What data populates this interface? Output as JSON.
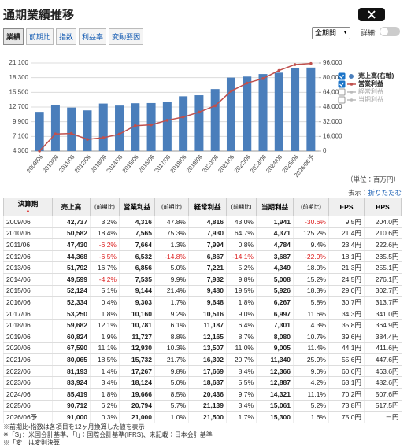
{
  "header": {
    "title": "通期業績推移"
  },
  "tabs": [
    "業績",
    "前期比",
    "指数",
    "利益率",
    "変動要因"
  ],
  "period_select": "全期間",
  "detail_label": "詳細:",
  "chart_data": {
    "type": "combo",
    "categories": [
      "2009/06",
      "2010/06",
      "2011/06",
      "2012/06",
      "2013/06",
      "2014/06",
      "2015/06",
      "2016/06",
      "2017/06",
      "2018/06",
      "2019/06",
      "2020/06",
      "2021/06",
      "2022/06",
      "2023/06",
      "2024/06",
      "2025/06",
      "2026/06予"
    ],
    "series": [
      {
        "name": "売上高(右軸)",
        "type": "bar",
        "axis": "y2",
        "color": "#4a7ebb",
        "visible": true,
        "values": [
          42737,
          50582,
          47430,
          44368,
          51792,
          49599,
          52124,
          52334,
          53250,
          59682,
          60824,
          67590,
          80065,
          81193,
          83924,
          85419,
          90712,
          91000
        ]
      },
      {
        "name": "営業利益",
        "type": "line",
        "color": "#c0504d",
        "visible": true,
        "values": [
          4316,
          7565,
          7664,
          6532,
          6856,
          7535,
          9144,
          9303,
          10160,
          10781,
          11727,
          12930,
          15732,
          17267,
          18124,
          19666,
          20794,
          21000
        ]
      },
      {
        "name": "経常利益",
        "type": "line",
        "color": "#bbbbbb",
        "visible": false
      },
      {
        "name": "当期利益",
        "type": "line",
        "color": "#bbbbbb",
        "visible": false
      }
    ],
    "ylim": [
      4300,
      21100
    ],
    "yticks": [
      {
        "value": 4300,
        "label": "4,300"
      },
      {
        "value": 7100,
        "label": "7,100"
      },
      {
        "value": 9900,
        "label": "9,900"
      },
      {
        "value": 12700,
        "label": "12,700"
      },
      {
        "value": 15500,
        "label": "15,500"
      },
      {
        "value": 18300,
        "label": "18,300"
      },
      {
        "value": 21100,
        "label": "21,100"
      }
    ],
    "y2lim": [
      0,
      96000
    ],
    "y2ticks": [
      0,
      {
        "value": 16000,
        "label": "16,000"
      },
      {
        "value": 32000,
        "label": "32,000"
      },
      {
        "value": 48000,
        "label": "48,000"
      },
      {
        "value": 64000,
        "label": "64,000"
      },
      {
        "value": 80000,
        "label": "80,000"
      },
      {
        "value": 96000,
        "label": "96,000"
      }
    ],
    "grid": true,
    "legend": "right"
  },
  "unit_note": "（単位：百万円）",
  "display_label": "表示：",
  "collapse_link": "折りたたむ",
  "table": {
    "columns": [
      "決算期",
      "売上高",
      "(前期比)",
      "営業利益",
      "(前期比)",
      "経常利益",
      "(前期比)",
      "当期利益",
      "(前期比)",
      "EPS",
      "BPS"
    ],
    "rows": [
      [
        "2009/06",
        "42,737",
        "3.2%",
        "4,316",
        "47.8%",
        "4,816",
        "43.0%",
        "1,941",
        "-30.6%",
        "9.5円",
        "204.0円"
      ],
      [
        "2010/06",
        "50,582",
        "18.4%",
        "7,565",
        "75.3%",
        "7,930",
        "64.7%",
        "4,371",
        "125.2%",
        "21.4円",
        "210.6円"
      ],
      [
        "2011/06",
        "47,430",
        "-6.2%",
        "7,664",
        "1.3%",
        "7,994",
        "0.8%",
        "4,784",
        "9.4%",
        "23.4円",
        "222.6円"
      ],
      [
        "2012/06",
        "44,368",
        "-6.5%",
        "6,532",
        "-14.8%",
        "6,867",
        "-14.1%",
        "3,687",
        "-22.9%",
        "18.1円",
        "235.5円"
      ],
      [
        "2013/06",
        "51,792",
        "16.7%",
        "6,856",
        "5.0%",
        "7,221",
        "5.2%",
        "4,349",
        "18.0%",
        "21.3円",
        "255.1円"
      ],
      [
        "2014/06",
        "49,599",
        "-4.2%",
        "7,535",
        "9.9%",
        "7,932",
        "9.8%",
        "5,008",
        "15.2%",
        "24.5円",
        "276.1円"
      ],
      [
        "2015/06",
        "52,124",
        "5.1%",
        "9,144",
        "21.4%",
        "9,480",
        "19.5%",
        "5,926",
        "18.3%",
        "29.0円",
        "302.7円"
      ],
      [
        "2016/06",
        "52,334",
        "0.4%",
        "9,303",
        "1.7%",
        "9,648",
        "1.8%",
        "6,267",
        "5.8%",
        "30.7円",
        "313.7円"
      ],
      [
        "2017/06",
        "53,250",
        "1.8%",
        "10,160",
        "9.2%",
        "10,516",
        "9.0%",
        "6,997",
        "11.6%",
        "34.3円",
        "341.0円"
      ],
      [
        "2018/06",
        "59,682",
        "12.1%",
        "10,781",
        "6.1%",
        "11,187",
        "6.4%",
        "7,301",
        "4.3%",
        "35.8円",
        "364.9円"
      ],
      [
        "2019/06",
        "60,824",
        "1.9%",
        "11,727",
        "8.8%",
        "12,165",
        "8.7%",
        "8,080",
        "10.7%",
        "39.6円",
        "384.4円"
      ],
      [
        "2020/06",
        "67,590",
        "11.1%",
        "12,930",
        "10.3%",
        "13,507",
        "11.0%",
        "9,005",
        "11.4%",
        "44.1円",
        "411.6円"
      ],
      [
        "2021/06",
        "80,065",
        "18.5%",
        "15,732",
        "21.7%",
        "16,302",
        "20.7%",
        "11,340",
        "25.9%",
        "55.6円",
        "447.6円"
      ],
      [
        "2022/06",
        "81,193",
        "1.4%",
        "17,267",
        "9.8%",
        "17,669",
        "8.4%",
        "12,366",
        "9.0%",
        "60.6円",
        "463.6円"
      ],
      [
        "2023/06",
        "83,924",
        "3.4%",
        "18,124",
        "5.0%",
        "18,637",
        "5.5%",
        "12,887",
        "4.2%",
        "63.1円",
        "482.6円"
      ],
      [
        "2024/06",
        "85,419",
        "1.8%",
        "19,666",
        "8.5%",
        "20,436",
        "9.7%",
        "14,321",
        "11.1%",
        "70.2円",
        "507.6円"
      ],
      [
        "2025/06",
        "90,712",
        "6.2%",
        "20,794",
        "5.7%",
        "21,139",
        "3.4%",
        "15,061",
        "5.2%",
        "73.8円",
        "517.5円"
      ],
      [
        "2026/06予",
        "91,000",
        "0.3%",
        "21,000",
        "1.0%",
        "21,500",
        "1.7%",
        "15,300",
        "1.6%",
        "75.0円",
        "－円"
      ]
    ]
  },
  "footnotes": [
    "※前期比・指数は各項目を12ヶ月換算した値を表示",
    "※「S」：米国会計基準、「I」：国際会計基準(IFRS)、未記載：日本会計基準",
    "※「変」は変則決算"
  ]
}
